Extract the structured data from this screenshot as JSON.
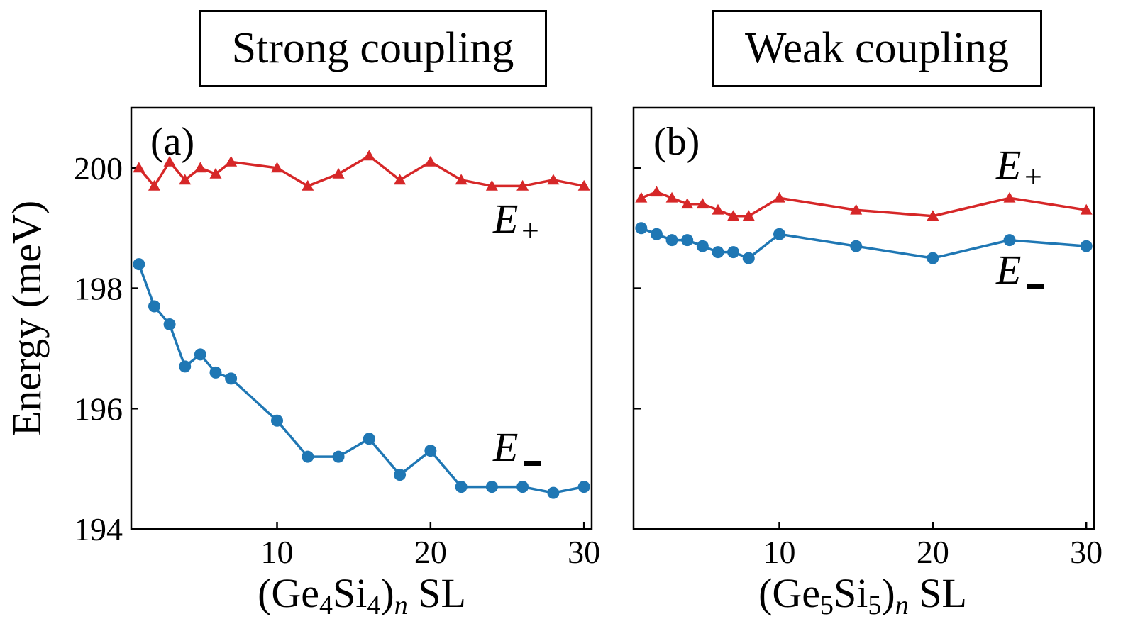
{
  "panels": [
    {
      "id": "a",
      "box_title": "Strong coupling",
      "panel_label": "(a)",
      "xlabel": "(Ge4Si4)n SL",
      "xlabel_parts": {
        "open": "(Ge",
        "sub1": "4",
        "mid": "Si",
        "sub2": "4",
        "close": ")",
        "sub3": "n",
        "tail": " SL"
      },
      "ylabel": "Energy (meV)",
      "xticks": [
        10,
        20,
        30
      ],
      "yticks": [
        194,
        196,
        198,
        200
      ],
      "series_labels": {
        "plus": "E+",
        "minus": "E−"
      }
    },
    {
      "id": "b",
      "box_title": "Weak coupling",
      "panel_label": "(b)",
      "xlabel": "(Ge5Si5)n SL",
      "xlabel_parts": {
        "open": "(Ge",
        "sub1": "5",
        "mid": "Si",
        "sub2": "5",
        "close": ")",
        "sub3": "n",
        "tail": " SL"
      },
      "xticks": [
        10,
        20,
        30
      ],
      "series_labels": {
        "plus": "E+",
        "minus": "E−"
      }
    }
  ],
  "chart_data": [
    {
      "type": "line",
      "title": "Strong coupling",
      "panel": "(a)",
      "xlabel": "(Ge4Si4)n SL",
      "ylabel": "Energy (meV)",
      "xlim": [
        0.5,
        30.5
      ],
      "ylim": [
        194,
        201
      ],
      "grid": false,
      "series": [
        {
          "name": "E+",
          "color": "#d62728",
          "marker": "triangle",
          "x": [
            1,
            2,
            3,
            4,
            5,
            6,
            7,
            10,
            12,
            14,
            16,
            18,
            20,
            22,
            24,
            26,
            28,
            30
          ],
          "y": [
            200.0,
            199.7,
            200.1,
            199.8,
            200.0,
            199.9,
            200.1,
            200.0,
            199.7,
            199.9,
            200.2,
            199.8,
            200.1,
            199.8,
            199.7,
            199.7,
            199.8,
            199.7
          ]
        },
        {
          "name": "E−",
          "color": "#1f77b4",
          "marker": "circle",
          "x": [
            1,
            2,
            3,
            4,
            5,
            6,
            7,
            10,
            12,
            14,
            16,
            18,
            20,
            22,
            24,
            26,
            28,
            30
          ],
          "y": [
            198.4,
            197.7,
            197.4,
            196.7,
            196.9,
            196.6,
            196.5,
            195.8,
            195.2,
            195.2,
            195.5,
            194.9,
            195.3,
            194.7,
            194.7,
            194.7,
            194.6,
            194.7
          ]
        }
      ]
    },
    {
      "type": "line",
      "title": "Weak coupling",
      "panel": "(b)",
      "xlabel": "(Ge5Si5)n SL",
      "xlim": [
        0.5,
        30.5
      ],
      "ylim": [
        194,
        201
      ],
      "grid": false,
      "series": [
        {
          "name": "E+",
          "color": "#d62728",
          "marker": "triangle",
          "x": [
            1,
            2,
            3,
            4,
            5,
            6,
            7,
            8,
            10,
            15,
            20,
            25,
            30
          ],
          "y": [
            199.5,
            199.6,
            199.5,
            199.4,
            199.4,
            199.3,
            199.2,
            199.2,
            199.5,
            199.3,
            199.2,
            199.5,
            199.3
          ]
        },
        {
          "name": "E−",
          "color": "#1f77b4",
          "marker": "circle",
          "x": [
            1,
            2,
            3,
            4,
            5,
            6,
            7,
            8,
            10,
            15,
            20,
            25,
            30
          ],
          "y": [
            199.0,
            198.9,
            198.8,
            198.8,
            198.7,
            198.6,
            198.6,
            198.5,
            198.9,
            198.7,
            198.5,
            198.8,
            198.7
          ]
        }
      ]
    }
  ]
}
